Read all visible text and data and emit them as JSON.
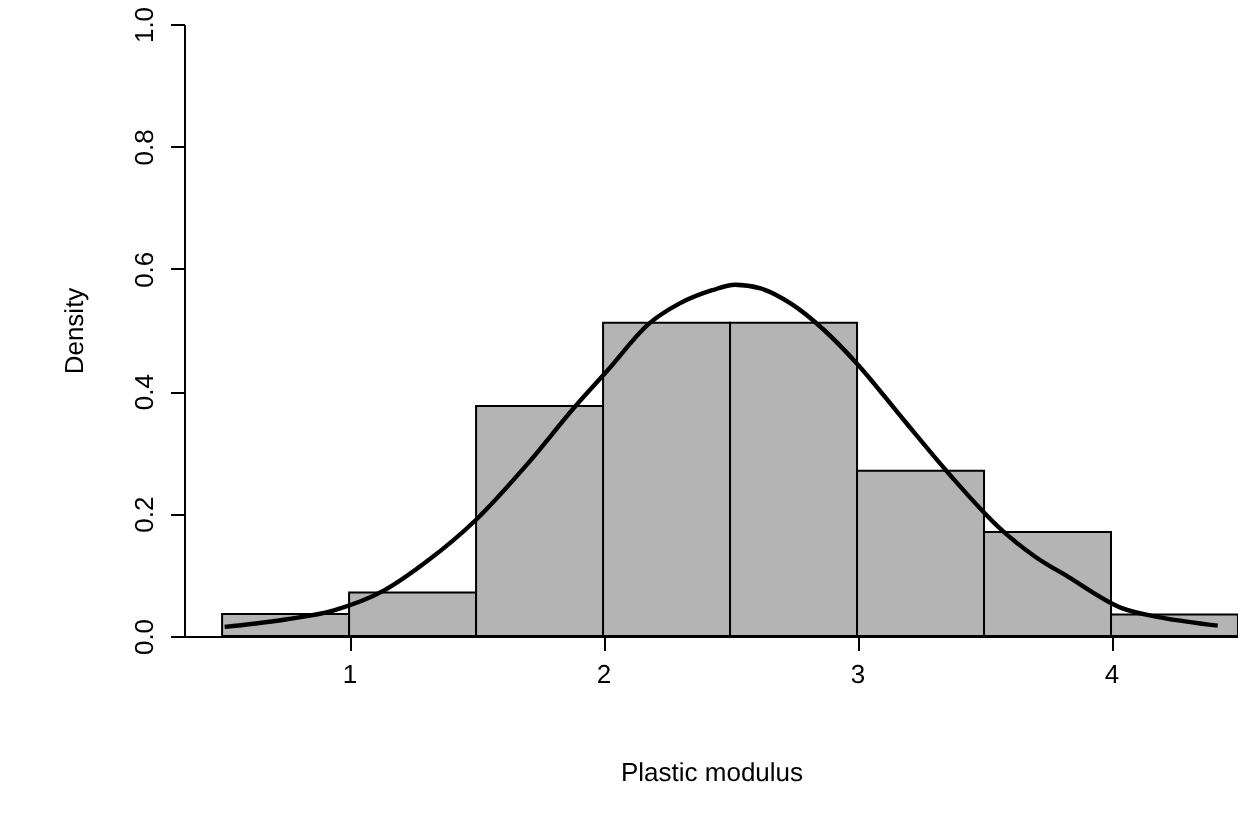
{
  "chart_data": {
    "type": "histogram",
    "xlabel": "Plastic modulus",
    "ylabel": "Density",
    "bins": [
      0.5,
      1,
      1.5,
      2,
      2.5,
      3,
      3.5,
      4,
      4.5
    ],
    "series": [
      {
        "color": "#b4b4b4",
        "values": [
          0.036,
          0.071,
          0.376,
          0.512,
          0.512,
          0.27,
          0.17,
          0.035
        ]
      },
      {
        "type": "line",
        "color": "#000000",
        "x": [
          0.51,
          0.75,
          0.94,
          1.14,
          1.3,
          1.5,
          1.7,
          1.89,
          2.02,
          2.18,
          2.3,
          2.43,
          2.52,
          2.62,
          2.74,
          2.87,
          3.0,
          3.18,
          3.36,
          3.57,
          3.7,
          3.83,
          4.04,
          4.2,
          4.42
        ],
        "values": [
          0.015,
          0.027,
          0.042,
          0.075,
          0.12,
          0.19,
          0.28,
          0.375,
          0.435,
          0.51,
          0.543,
          0.565,
          0.574,
          0.568,
          0.543,
          0.5,
          0.445,
          0.355,
          0.266,
          0.173,
          0.13,
          0.097,
          0.046,
          0.03,
          0.017
        ]
      }
    ],
    "xlim": [
      0.35,
      4.5
    ],
    "xticks": [
      1,
      2,
      3,
      4
    ],
    "ylim": [
      0,
      1
    ],
    "yticks": [
      {
        "value": 0,
        "label": "0.0"
      },
      {
        "value": 0.2,
        "label": "0.2"
      },
      {
        "value": 0.4,
        "label": "0.4"
      },
      {
        "value": 0.6,
        "label": "0.6"
      },
      {
        "value": 0.8,
        "label": "0.8"
      },
      {
        "value": 1,
        "label": "1.0"
      }
    ]
  }
}
